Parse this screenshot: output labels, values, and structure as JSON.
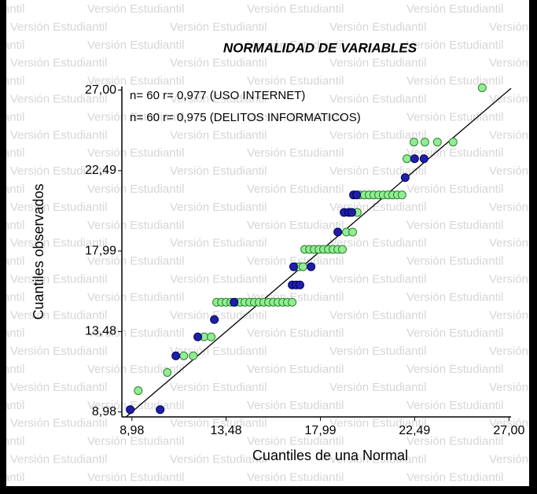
{
  "chart_data": {
    "type": "scatter",
    "watermark": "Versión Estudiantil",
    "title": "NORMALIDAD DE VARIABLES",
    "x_label": "Cuantiles de una Normal",
    "y_label": "Cuantiles observados",
    "annotations": [
      "n= 60 r= 0,977 (USO INTERNET)",
      "n= 60 r= 0,975 (DELITOS INFORMATICOS)"
    ],
    "xlim": [
      8.5,
      27.1
    ],
    "ylim": [
      8.7,
      27.2
    ],
    "xticks": [
      {
        "value": 8.98,
        "label": "8,98"
      },
      {
        "value": 13.48,
        "label": "13,48"
      },
      {
        "value": 17.99,
        "label": "17,99"
      },
      {
        "value": 22.49,
        "label": "22,49"
      },
      {
        "value": 27.0,
        "label": "27,00"
      }
    ],
    "yticks": [
      {
        "value": 8.98,
        "label": "8,98"
      },
      {
        "value": 13.48,
        "label": "13,48"
      },
      {
        "value": 17.99,
        "label": "17,99"
      },
      {
        "value": 22.49,
        "label": "22,49"
      },
      {
        "value": 27.0,
        "label": "27,00"
      }
    ],
    "series": [
      {
        "color": "#90ee90",
        "stroke": "#2e7d32",
        "x": [
          9.28,
          10.67,
          11.46,
          11.91,
          12.43,
          12.77,
          13.03,
          13.26,
          13.48,
          13.71,
          13.93,
          14.16,
          14.38,
          14.61,
          14.83,
          15.06,
          15.28,
          15.51,
          15.74,
          15.96,
          16.19,
          16.41,
          16.64,
          16.79,
          16.98,
          17.16,
          17.24,
          17.47,
          17.69,
          17.92,
          18.14,
          18.37,
          18.59,
          18.82,
          19.04,
          19.23,
          19.53,
          19.75,
          19.87,
          20.09,
          20.32,
          20.54,
          20.77,
          20.99,
          21.22,
          21.44,
          21.67,
          21.89,
          22.12,
          22.46,
          22.98,
          23.58,
          24.33,
          25.72
        ],
        "values": [
          10.17,
          11.19,
          12.12,
          12.12,
          13.18,
          13.18,
          15.12,
          15.12,
          15.12,
          15.12,
          15.12,
          15.12,
          15.12,
          15.12,
          15.12,
          15.12,
          15.12,
          15.12,
          15.12,
          15.12,
          15.12,
          15.12,
          15.12,
          17.11,
          17.11,
          17.11,
          18.08,
          18.08,
          18.08,
          18.08,
          18.08,
          18.08,
          18.08,
          18.08,
          18.08,
          19.05,
          19.05,
          20.15,
          21.13,
          21.13,
          21.13,
          21.13,
          21.13,
          21.13,
          21.13,
          21.13,
          21.13,
          21.13,
          23.16,
          24.09,
          24.09,
          24.09,
          24.09,
          27.13
        ]
      },
      {
        "color": "#1f1fa6",
        "stroke": "#000060",
        "x": [
          8.9,
          10.33,
          11.08,
          12.13,
          12.92,
          13.86,
          16.64,
          16.83,
          17.01,
          16.71,
          17.54,
          18.82,
          19.12,
          19.34,
          19.49,
          19.57,
          19.72,
          22.04,
          22.49,
          22.94
        ],
        "values": [
          9.11,
          9.11,
          12.12,
          13.18,
          14.15,
          15.12,
          16.09,
          16.09,
          16.09,
          17.11,
          17.11,
          19.05,
          20.15,
          20.15,
          20.15,
          21.13,
          21.13,
          22.1,
          23.16,
          23.16
        ]
      }
    ]
  }
}
